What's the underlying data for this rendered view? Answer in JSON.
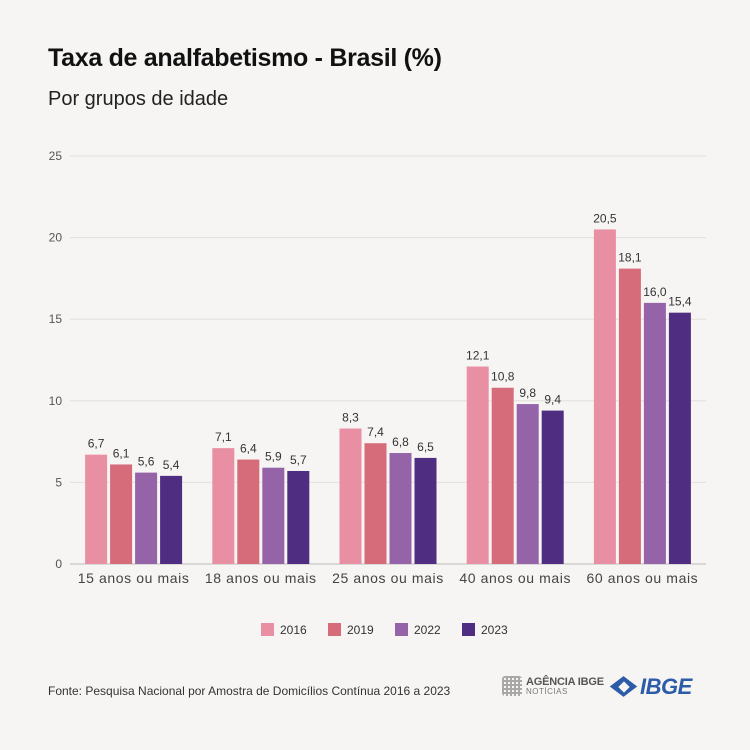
{
  "header": {
    "title": "Taxa de analfabetismo - Brasil (%)",
    "subtitle": "Por grupos de idade"
  },
  "chart_data": {
    "type": "bar",
    "title": "Taxa de analfabetismo - Brasil (%)",
    "subtitle": "Por grupos de idade",
    "categories": [
      "15 anos ou mais",
      "18 anos ou mais",
      "25 anos ou mais",
      "40 anos ou mais",
      "60 anos ou mais"
    ],
    "series": [
      {
        "name": "2016",
        "values": [
          6.7,
          7.1,
          8.3,
          12.1,
          20.5
        ],
        "labels": [
          "6,7",
          "7,1",
          "8,3",
          "12,1",
          "20,5"
        ],
        "color": "#e88fa3"
      },
      {
        "name": "2019",
        "values": [
          6.1,
          6.4,
          7.4,
          10.8,
          18.1
        ],
        "labels": [
          "6,1",
          "6,4",
          "7,4",
          "10,8",
          "18,1"
        ],
        "color": "#d66b7a"
      },
      {
        "name": "2022",
        "values": [
          5.6,
          5.9,
          6.8,
          9.8,
          16.0
        ],
        "labels": [
          "5,6",
          "5,9",
          "6,8",
          "9,8",
          "16,0"
        ],
        "color": "#9563a8"
      },
      {
        "name": "2023",
        "values": [
          5.4,
          5.7,
          6.5,
          9.4,
          15.4
        ],
        "labels": [
          "5,4",
          "5,7",
          "6,5",
          "9,4",
          "15,4"
        ],
        "color": "#4f2d80"
      }
    ],
    "yticks": [
      0,
      5,
      10,
      15,
      20,
      25
    ],
    "ylim": [
      0,
      25
    ],
    "grid": true,
    "legend": "bottom-center"
  },
  "footer": {
    "source": "Fonte: Pesquisa Nacional por Amostra de Domicílios Contínua 2016 a 2023",
    "agencia_logo": "AGÊNCIA IBGE",
    "agencia_sub": "NOTÍCIAS",
    "ibge_logo": "IBGE"
  }
}
